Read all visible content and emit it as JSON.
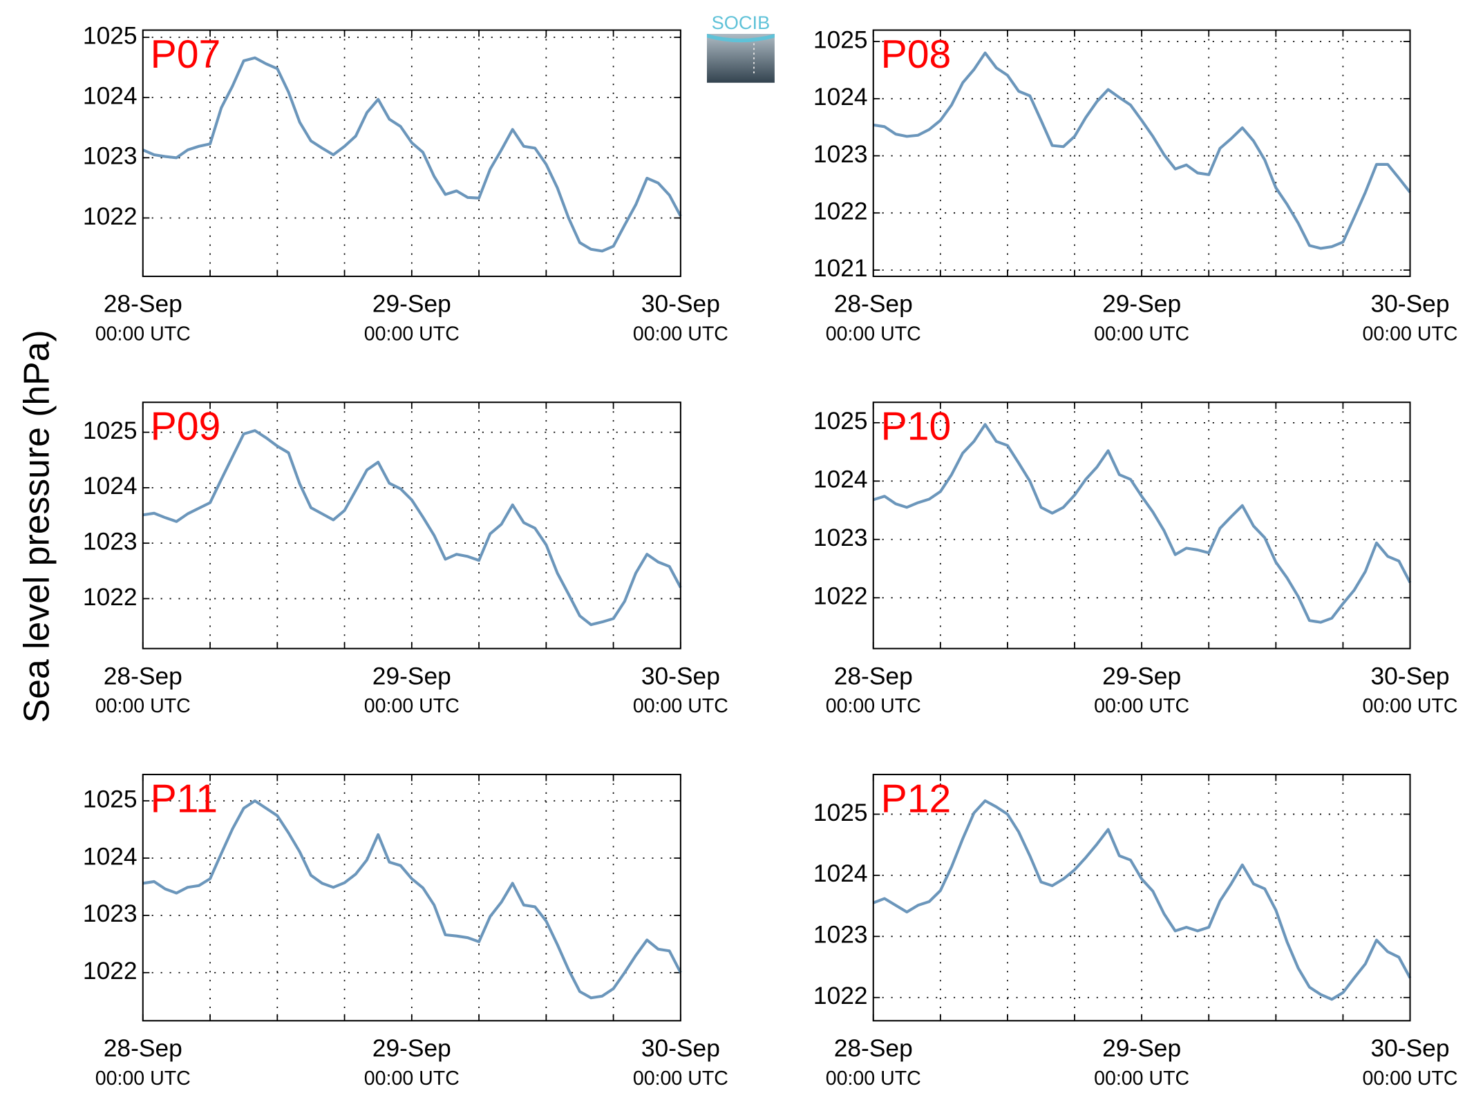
{
  "figure": {
    "ylabel": "Sea level pressure (hPa)",
    "logo_text": "SOCIB"
  },
  "chart_data": [
    {
      "type": "line",
      "title": "P07",
      "color": "#6b96bb",
      "title_color": "#ff0000",
      "grid": true,
      "xlim": [
        0,
        48
      ],
      "ylim": [
        1021.03,
        1025.12
      ],
      "xticks": [
        {
          "value": 0,
          "label": "28-Sep",
          "sublabel": "00:00 UTC"
        },
        {
          "value": 6,
          "label": null
        },
        {
          "value": 12,
          "label": null
        },
        {
          "value": 18,
          "label": null
        },
        {
          "value": 24,
          "label": "29-Sep",
          "sublabel": "00:00 UTC"
        },
        {
          "value": 30,
          "label": null
        },
        {
          "value": 36,
          "label": null
        },
        {
          "value": 42,
          "label": null
        },
        {
          "value": 48,
          "label": "30-Sep",
          "sublabel": "00:00 UTC"
        }
      ],
      "yticks": [
        1022,
        1023,
        1024,
        1025
      ],
      "x": [
        0,
        1,
        2,
        3,
        4,
        5,
        6,
        7,
        8,
        9,
        10,
        11,
        12,
        13,
        14,
        15,
        16,
        17,
        18,
        19,
        20,
        21,
        22,
        23,
        24,
        25,
        26,
        27,
        28,
        29,
        30,
        31,
        32,
        33,
        34,
        35,
        36,
        37,
        38,
        39,
        40,
        41,
        42,
        43,
        44,
        45,
        46,
        47,
        48
      ],
      "values": [
        1023.13,
        1023.05,
        1023.02,
        1023.0,
        1023.13,
        1023.19,
        1023.23,
        1023.83,
        1024.19,
        1024.61,
        1024.66,
        1024.56,
        1024.48,
        1024.09,
        1023.59,
        1023.28,
        1023.16,
        1023.05,
        1023.19,
        1023.36,
        1023.75,
        1023.97,
        1023.64,
        1023.52,
        1023.25,
        1023.09,
        1022.69,
        1022.39,
        1022.45,
        1022.34,
        1022.33,
        1022.81,
        1023.13,
        1023.47,
        1023.19,
        1023.16,
        1022.89,
        1022.5,
        1022.0,
        1021.59,
        1021.48,
        1021.45,
        1021.53,
        1021.88,
        1022.22,
        1022.66,
        1022.58,
        1022.38,
        1022.03
      ]
    },
    {
      "type": "line",
      "title": "P08",
      "color": "#6b96bb",
      "title_color": "#ff0000",
      "grid": true,
      "xlim": [
        0,
        48
      ],
      "ylim": [
        1020.89,
        1025.2
      ],
      "xticks": [
        {
          "value": 0,
          "label": "28-Sep",
          "sublabel": "00:00 UTC"
        },
        {
          "value": 6,
          "label": null
        },
        {
          "value": 12,
          "label": null
        },
        {
          "value": 18,
          "label": null
        },
        {
          "value": 24,
          "label": "29-Sep",
          "sublabel": "00:00 UTC"
        },
        {
          "value": 30,
          "label": null
        },
        {
          "value": 36,
          "label": null
        },
        {
          "value": 42,
          "label": null
        },
        {
          "value": 48,
          "label": "30-Sep",
          "sublabel": "00:00 UTC"
        }
      ],
      "yticks": [
        1021,
        1022,
        1023,
        1024,
        1025
      ],
      "x": [
        0,
        1,
        2,
        3,
        4,
        5,
        6,
        7,
        8,
        9,
        10,
        11,
        12,
        13,
        14,
        15,
        16,
        17,
        18,
        19,
        20,
        21,
        22,
        23,
        24,
        25,
        26,
        27,
        28,
        29,
        30,
        31,
        32,
        33,
        34,
        35,
        36,
        37,
        38,
        39,
        40,
        41,
        42,
        43,
        44,
        45,
        46,
        47,
        48
      ],
      "values": [
        1023.54,
        1023.51,
        1023.38,
        1023.34,
        1023.36,
        1023.46,
        1023.62,
        1023.89,
        1024.28,
        1024.51,
        1024.8,
        1024.54,
        1024.41,
        1024.13,
        1024.05,
        1023.62,
        1023.18,
        1023.16,
        1023.34,
        1023.67,
        1023.95,
        1024.16,
        1024.02,
        1023.89,
        1023.62,
        1023.34,
        1023.02,
        1022.77,
        1022.84,
        1022.7,
        1022.67,
        1023.13,
        1023.3,
        1023.49,
        1023.26,
        1022.93,
        1022.44,
        1022.15,
        1021.82,
        1021.43,
        1021.38,
        1021.41,
        1021.49,
        1021.92,
        1022.36,
        1022.85,
        1022.85,
        1022.61,
        1022.36
      ]
    },
    {
      "type": "line",
      "title": "P09",
      "color": "#6b96bb",
      "title_color": "#ff0000",
      "grid": true,
      "xlim": [
        0,
        48
      ],
      "ylim": [
        1021.1,
        1025.54
      ],
      "xticks": [
        {
          "value": 0,
          "label": "28-Sep",
          "sublabel": "00:00 UTC"
        },
        {
          "value": 6,
          "label": null
        },
        {
          "value": 12,
          "label": null
        },
        {
          "value": 18,
          "label": null
        },
        {
          "value": 24,
          "label": "29-Sep",
          "sublabel": "00:00 UTC"
        },
        {
          "value": 30,
          "label": null
        },
        {
          "value": 36,
          "label": null
        },
        {
          "value": 42,
          "label": null
        },
        {
          "value": 48,
          "label": "30-Sep",
          "sublabel": "00:00 UTC"
        }
      ],
      "yticks": [
        1022,
        1023,
        1024,
        1025
      ],
      "x": [
        0,
        1,
        2,
        3,
        4,
        5,
        6,
        7,
        8,
        9,
        10,
        11,
        12,
        13,
        14,
        15,
        16,
        17,
        18,
        19,
        20,
        21,
        22,
        23,
        24,
        25,
        26,
        27,
        28,
        29,
        30,
        31,
        32,
        33,
        34,
        35,
        36,
        37,
        38,
        39,
        40,
        41,
        42,
        43,
        44,
        45,
        46,
        47,
        48
      ],
      "values": [
        1023.51,
        1023.54,
        1023.46,
        1023.39,
        1023.53,
        1023.63,
        1023.73,
        1024.15,
        1024.56,
        1024.97,
        1025.03,
        1024.9,
        1024.75,
        1024.63,
        1024.07,
        1023.64,
        1023.53,
        1023.42,
        1023.59,
        1023.95,
        1024.32,
        1024.46,
        1024.08,
        1023.98,
        1023.78,
        1023.47,
        1023.14,
        1022.71,
        1022.8,
        1022.76,
        1022.69,
        1023.17,
        1023.34,
        1023.69,
        1023.37,
        1023.27,
        1022.97,
        1022.46,
        1022.08,
        1021.69,
        1021.53,
        1021.58,
        1021.64,
        1021.95,
        1022.46,
        1022.8,
        1022.66,
        1022.58,
        1022.2
      ]
    },
    {
      "type": "line",
      "title": "P10",
      "color": "#6b96bb",
      "title_color": "#ff0000",
      "grid": true,
      "xlim": [
        0,
        48
      ],
      "ylim": [
        1021.13,
        1025.35
      ],
      "xticks": [
        {
          "value": 0,
          "label": "28-Sep",
          "sublabel": "00:00 UTC"
        },
        {
          "value": 6,
          "label": null
        },
        {
          "value": 12,
          "label": null
        },
        {
          "value": 18,
          "label": null
        },
        {
          "value": 24,
          "label": "29-Sep",
          "sublabel": "00:00 UTC"
        },
        {
          "value": 30,
          "label": null
        },
        {
          "value": 36,
          "label": null
        },
        {
          "value": 42,
          "label": null
        },
        {
          "value": 48,
          "label": "30-Sep",
          "sublabel": "00:00 UTC"
        }
      ],
      "yticks": [
        1022,
        1023,
        1024,
        1025
      ],
      "x": [
        0,
        1,
        2,
        3,
        4,
        5,
        6,
        7,
        8,
        9,
        10,
        11,
        12,
        13,
        14,
        15,
        16,
        17,
        18,
        19,
        20,
        21,
        22,
        23,
        24,
        25,
        26,
        27,
        28,
        29,
        30,
        31,
        32,
        33,
        34,
        35,
        36,
        37,
        38,
        39,
        40,
        41,
        42,
        43,
        44,
        45,
        46,
        47,
        48
      ],
      "values": [
        1023.68,
        1023.74,
        1023.61,
        1023.55,
        1023.63,
        1023.69,
        1023.82,
        1024.11,
        1024.48,
        1024.68,
        1024.97,
        1024.68,
        1024.61,
        1024.31,
        1024.0,
        1023.55,
        1023.45,
        1023.55,
        1023.76,
        1024.03,
        1024.24,
        1024.52,
        1024.11,
        1024.03,
        1023.74,
        1023.47,
        1023.15,
        1022.74,
        1022.85,
        1022.82,
        1022.77,
        1023.19,
        1023.39,
        1023.58,
        1023.23,
        1023.03,
        1022.61,
        1022.34,
        1022.02,
        1021.61,
        1021.58,
        1021.65,
        1021.9,
        1022.13,
        1022.45,
        1022.94,
        1022.71,
        1022.63,
        1022.26
      ]
    },
    {
      "type": "line",
      "title": "P11",
      "color": "#6b96bb",
      "title_color": "#ff0000",
      "grid": true,
      "xlim": [
        0,
        48
      ],
      "ylim": [
        1021.16,
        1025.46
      ],
      "xticks": [
        {
          "value": 0,
          "label": "28-Sep",
          "sublabel": "00:00 UTC"
        },
        {
          "value": 6,
          "label": null
        },
        {
          "value": 12,
          "label": null
        },
        {
          "value": 18,
          "label": null
        },
        {
          "value": 24,
          "label": "29-Sep",
          "sublabel": "00:00 UTC"
        },
        {
          "value": 30,
          "label": null
        },
        {
          "value": 36,
          "label": null
        },
        {
          "value": 42,
          "label": null
        },
        {
          "value": 48,
          "label": "30-Sep",
          "sublabel": "00:00 UTC"
        }
      ],
      "yticks": [
        1022,
        1023,
        1024,
        1025
      ],
      "x": [
        0,
        1,
        2,
        3,
        4,
        5,
        6,
        7,
        8,
        9,
        10,
        11,
        12,
        13,
        14,
        15,
        16,
        17,
        18,
        19,
        20,
        21,
        22,
        23,
        24,
        25,
        26,
        27,
        28,
        29,
        30,
        31,
        32,
        33,
        34,
        35,
        36,
        37,
        38,
        39,
        40,
        41,
        42,
        43,
        44,
        45,
        46,
        47,
        48
      ],
      "values": [
        1023.56,
        1023.59,
        1023.46,
        1023.39,
        1023.49,
        1023.52,
        1023.64,
        1024.08,
        1024.51,
        1024.87,
        1025.0,
        1024.87,
        1024.74,
        1024.44,
        1024.11,
        1023.7,
        1023.56,
        1023.49,
        1023.57,
        1023.72,
        1023.97,
        1024.41,
        1023.93,
        1023.87,
        1023.64,
        1023.48,
        1023.18,
        1022.66,
        1022.64,
        1022.61,
        1022.54,
        1022.98,
        1023.23,
        1023.56,
        1023.18,
        1023.15,
        1022.9,
        1022.49,
        1022.05,
        1021.67,
        1021.56,
        1021.59,
        1021.72,
        1022.0,
        1022.3,
        1022.57,
        1022.41,
        1022.38,
        1022.0
      ]
    },
    {
      "type": "line",
      "title": "P12",
      "color": "#6b96bb",
      "title_color": "#ff0000",
      "grid": true,
      "xlim": [
        0,
        48
      ],
      "ylim": [
        1021.62,
        1025.65
      ],
      "xticks": [
        {
          "value": 0,
          "label": "28-Sep",
          "sublabel": "00:00 UTC"
        },
        {
          "value": 6,
          "label": null
        },
        {
          "value": 12,
          "label": null
        },
        {
          "value": 18,
          "label": null
        },
        {
          "value": 24,
          "label": "29-Sep",
          "sublabel": "00:00 UTC"
        },
        {
          "value": 30,
          "label": null
        },
        {
          "value": 36,
          "label": null
        },
        {
          "value": 42,
          "label": null
        },
        {
          "value": 48,
          "label": "30-Sep",
          "sublabel": "00:00 UTC"
        }
      ],
      "yticks": [
        1022,
        1023,
        1024,
        1025
      ],
      "x": [
        0,
        1,
        2,
        3,
        4,
        5,
        6,
        7,
        8,
        9,
        10,
        11,
        12,
        13,
        14,
        15,
        16,
        17,
        18,
        19,
        20,
        21,
        22,
        23,
        24,
        25,
        26,
        27,
        28,
        29,
        30,
        31,
        32,
        33,
        34,
        35,
        36,
        37,
        38,
        39,
        40,
        41,
        42,
        43,
        44,
        45,
        46,
        47,
        48
      ],
      "values": [
        1023.55,
        1023.62,
        1023.51,
        1023.4,
        1023.51,
        1023.57,
        1023.75,
        1024.14,
        1024.6,
        1025.02,
        1025.22,
        1025.12,
        1025.0,
        1024.71,
        1024.32,
        1023.89,
        1023.83,
        1023.94,
        1024.09,
        1024.29,
        1024.51,
        1024.75,
        1024.32,
        1024.25,
        1023.94,
        1023.74,
        1023.37,
        1023.09,
        1023.15,
        1023.09,
        1023.15,
        1023.58,
        1023.86,
        1024.17,
        1023.86,
        1023.78,
        1023.43,
        1022.91,
        1022.48,
        1022.17,
        1022.05,
        1021.97,
        1022.08,
        1022.32,
        1022.55,
        1022.94,
        1022.75,
        1022.66,
        1022.32
      ]
    }
  ]
}
